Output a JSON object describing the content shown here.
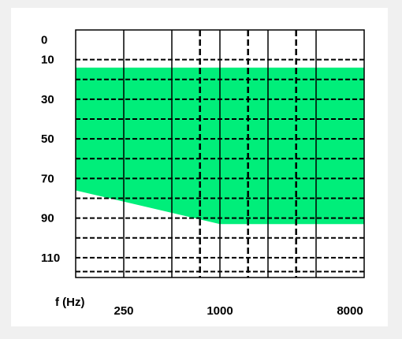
{
  "chart_data": {
    "type": "area",
    "title": "",
    "xlabel": "f (Hz)",
    "ylabel": "",
    "y_axis_inverted": true,
    "grid": "on",
    "colors": {
      "fill": "#00ee7a",
      "grid": "#000000",
      "background": "#ffffff"
    },
    "y_ticks": [
      "0",
      "10",
      "30",
      "50",
      "70",
      "90",
      "110"
    ],
    "y_tick_values": [
      0,
      10,
      30,
      50,
      70,
      90,
      110
    ],
    "ylim": [
      -5,
      120
    ],
    "x_tick_labels": [
      "250",
      "1000",
      "8000"
    ],
    "x_octaves": [
      125,
      250,
      500,
      1000,
      2000,
      4000,
      8000
    ],
    "series": [
      {
        "x": [
          125,
          1000,
          8000
        ],
        "upper_y": [
          14,
          14,
          14
        ],
        "lower_y": [
          76,
          93,
          93
        ]
      }
    ]
  }
}
